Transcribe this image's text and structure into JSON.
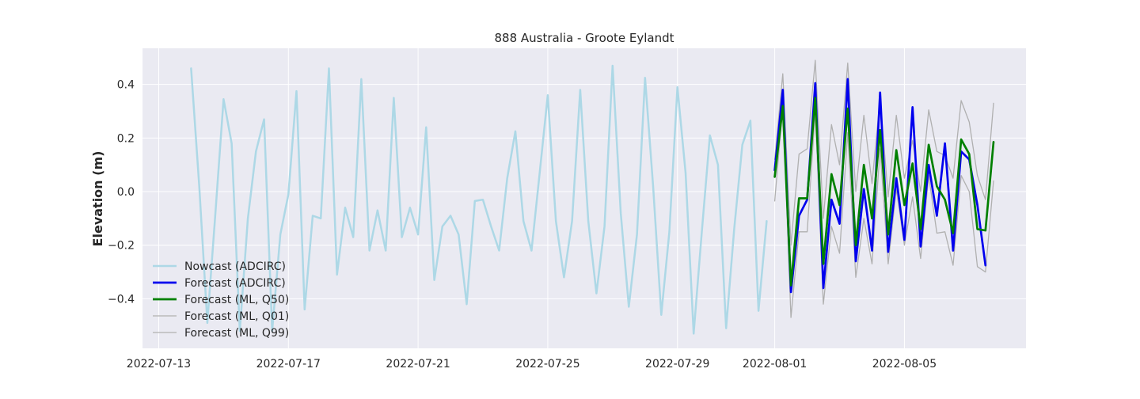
{
  "chart_data": {
    "type": "line",
    "title": "888 Australia - Groote Eylandt",
    "xlabel": "",
    "ylabel": "Elevation (m)",
    "x_axis": {
      "type": "date",
      "range": [
        "2022-07-12T12:00",
        "2022-08-08T18:00"
      ],
      "ticks": [
        "2022-07-13",
        "2022-07-17",
        "2022-07-21",
        "2022-07-25",
        "2022-07-29",
        "2022-08-01",
        "2022-08-05"
      ]
    },
    "y_axis": {
      "range": [
        -0.585,
        0.535
      ],
      "ticks": [
        -0.4,
        -0.2,
        0.0,
        0.2,
        0.4
      ],
      "tick_labels": [
        "−0.4",
        "−0.2",
        "0.0",
        "0.2",
        "0.4"
      ]
    },
    "grid": true,
    "legend": "lower-left",
    "colors": {
      "background": "#eaeaf2",
      "grid": "#ffffff"
    },
    "series": [
      {
        "name": "Nowcast (ADCIRC)",
        "color": "#add8e6",
        "width": 2.5,
        "points": [
          [
            "2022-07-14T00:00",
            0.46
          ],
          [
            "2022-07-14T06:00",
            0.02
          ],
          [
            "2022-07-14T12:00",
            -0.49
          ],
          [
            "2022-07-14T18:00",
            -0.08
          ],
          [
            "2022-07-15T00:00",
            0.345
          ],
          [
            "2022-07-15T06:00",
            0.18
          ],
          [
            "2022-07-15T12:00",
            -0.52
          ],
          [
            "2022-07-15T18:00",
            -0.1
          ],
          [
            "2022-07-16T00:00",
            0.15
          ],
          [
            "2022-07-16T06:00",
            0.27
          ],
          [
            "2022-07-16T12:00",
            -0.52
          ],
          [
            "2022-07-16T18:00",
            -0.16
          ],
          [
            "2022-07-17T00:00",
            -0.01
          ],
          [
            "2022-07-17T06:00",
            0.375
          ],
          [
            "2022-07-17T12:00",
            -0.44
          ],
          [
            "2022-07-17T18:00",
            -0.09
          ],
          [
            "2022-07-18T00:00",
            -0.1
          ],
          [
            "2022-07-18T06:00",
            0.46
          ],
          [
            "2022-07-18T12:00",
            -0.31
          ],
          [
            "2022-07-18T18:00",
            -0.06
          ],
          [
            "2022-07-19T00:00",
            -0.17
          ],
          [
            "2022-07-19T06:00",
            0.42
          ],
          [
            "2022-07-19T12:00",
            -0.22
          ],
          [
            "2022-07-19T18:00",
            -0.07
          ],
          [
            "2022-07-20T00:00",
            -0.22
          ],
          [
            "2022-07-20T06:00",
            0.35
          ],
          [
            "2022-07-20T12:00",
            -0.17
          ],
          [
            "2022-07-20T18:00",
            -0.06
          ],
          [
            "2022-07-21T00:00",
            -0.16
          ],
          [
            "2022-07-21T06:00",
            0.24
          ],
          [
            "2022-07-21T12:00",
            -0.33
          ],
          [
            "2022-07-21T18:00",
            -0.13
          ],
          [
            "2022-07-22T00:00",
            -0.09
          ],
          [
            "2022-07-22T06:00",
            -0.16
          ],
          [
            "2022-07-22T12:00",
            -0.42
          ],
          [
            "2022-07-22T18:00",
            -0.035
          ],
          [
            "2022-07-23T00:00",
            -0.03
          ],
          [
            "2022-07-23T06:00",
            -0.13
          ],
          [
            "2022-07-23T12:00",
            -0.22
          ],
          [
            "2022-07-23T18:00",
            0.05
          ],
          [
            "2022-07-24T00:00",
            0.225
          ],
          [
            "2022-07-24T06:00",
            -0.11
          ],
          [
            "2022-07-24T12:00",
            -0.22
          ],
          [
            "2022-07-24T18:00",
            0.07
          ],
          [
            "2022-07-25T00:00",
            0.36
          ],
          [
            "2022-07-25T06:00",
            -0.11
          ],
          [
            "2022-07-25T12:00",
            -0.32
          ],
          [
            "2022-07-25T18:00",
            -0.11
          ],
          [
            "2022-07-26T00:00",
            0.38
          ],
          [
            "2022-07-26T06:00",
            -0.11
          ],
          [
            "2022-07-26T12:00",
            -0.38
          ],
          [
            "2022-07-26T18:00",
            -0.13
          ],
          [
            "2022-07-27T00:00",
            0.47
          ],
          [
            "2022-07-27T06:00",
            -0.08
          ],
          [
            "2022-07-27T12:00",
            -0.43
          ],
          [
            "2022-07-27T18:00",
            -0.16
          ],
          [
            "2022-07-28T00:00",
            0.425
          ],
          [
            "2022-07-28T06:00",
            0.02
          ],
          [
            "2022-07-28T12:00",
            -0.46
          ],
          [
            "2022-07-28T18:00",
            -0.15
          ],
          [
            "2022-07-29T00:00",
            0.39
          ],
          [
            "2022-07-29T06:00",
            0.07
          ],
          [
            "2022-07-29T12:00",
            -0.53
          ],
          [
            "2022-07-29T18:00",
            -0.15
          ],
          [
            "2022-07-30T00:00",
            0.21
          ],
          [
            "2022-07-30T06:00",
            0.1
          ],
          [
            "2022-07-30T12:00",
            -0.51
          ],
          [
            "2022-07-30T18:00",
            -0.14
          ],
          [
            "2022-07-31T00:00",
            0.175
          ],
          [
            "2022-07-31T06:00",
            0.265
          ],
          [
            "2022-07-31T12:00",
            -0.445
          ],
          [
            "2022-07-31T18:00",
            -0.11
          ]
        ]
      },
      {
        "name": "Forecast (ML, Q01)",
        "color": "#b0b0b0",
        "width": 1.3,
        "points": [
          [
            "2022-08-01T00:00",
            -0.035
          ],
          [
            "2022-08-01T06:00",
            0.32
          ],
          [
            "2022-08-01T12:00",
            -0.47
          ],
          [
            "2022-08-01T18:00",
            -0.15
          ],
          [
            "2022-08-02T00:00",
            -0.15
          ],
          [
            "2022-08-02T06:00",
            0.3
          ],
          [
            "2022-08-02T12:00",
            -0.42
          ],
          [
            "2022-08-02T18:00",
            -0.13
          ],
          [
            "2022-08-03T00:00",
            -0.23
          ],
          [
            "2022-08-03T06:00",
            0.22
          ],
          [
            "2022-08-03T12:00",
            -0.32
          ],
          [
            "2022-08-03T18:00",
            -0.1
          ],
          [
            "2022-08-04T00:00",
            -0.27
          ],
          [
            "2022-08-04T06:00",
            0.16
          ],
          [
            "2022-08-04T12:00",
            -0.27
          ],
          [
            "2022-08-04T18:00",
            0.01
          ],
          [
            "2022-08-05T00:00",
            -0.2
          ],
          [
            "2022-08-05T06:00",
            -0.02
          ],
          [
            "2022-08-05T12:00",
            -0.25
          ],
          [
            "2022-08-05T18:00",
            0.06
          ],
          [
            "2022-08-06T00:00",
            -0.155
          ],
          [
            "2022-08-06T06:00",
            -0.15
          ],
          [
            "2022-08-06T12:00",
            -0.275
          ],
          [
            "2022-08-06T18:00",
            0.06
          ],
          [
            "2022-08-07T00:00",
            0.0
          ],
          [
            "2022-08-07T06:00",
            -0.28
          ],
          [
            "2022-08-07T12:00",
            -0.3
          ],
          [
            "2022-08-07T18:00",
            0.04
          ]
        ]
      },
      {
        "name": "Forecast (ML, Q99)",
        "color": "#b0b0b0",
        "width": 1.3,
        "points": [
          [
            "2022-08-01T00:00",
            0.12
          ],
          [
            "2022-08-01T06:00",
            0.44
          ],
          [
            "2022-08-01T12:00",
            -0.2
          ],
          [
            "2022-08-01T18:00",
            0.14
          ],
          [
            "2022-08-02T00:00",
            0.16
          ],
          [
            "2022-08-02T06:00",
            0.49
          ],
          [
            "2022-08-02T12:00",
            -0.1
          ],
          [
            "2022-08-02T18:00",
            0.25
          ],
          [
            "2022-08-03T00:00",
            0.1
          ],
          [
            "2022-08-03T06:00",
            0.48
          ],
          [
            "2022-08-03T12:00",
            0.0
          ],
          [
            "2022-08-03T18:00",
            0.285
          ],
          [
            "2022-08-04T00:00",
            0.03
          ],
          [
            "2022-08-04T06:00",
            0.35
          ],
          [
            "2022-08-04T12:00",
            -0.02
          ],
          [
            "2022-08-04T18:00",
            0.285
          ],
          [
            "2022-08-05T00:00",
            0.05
          ],
          [
            "2022-08-05T06:00",
            0.19
          ],
          [
            "2022-08-05T12:00",
            0.0
          ],
          [
            "2022-08-05T18:00",
            0.305
          ],
          [
            "2022-08-06T00:00",
            0.15
          ],
          [
            "2022-08-06T06:00",
            0.135
          ],
          [
            "2022-08-06T12:00",
            0.05
          ],
          [
            "2022-08-06T18:00",
            0.34
          ],
          [
            "2022-08-07T00:00",
            0.26
          ],
          [
            "2022-08-07T06:00",
            0.06
          ],
          [
            "2022-08-07T12:00",
            -0.03
          ],
          [
            "2022-08-07T18:00",
            0.33
          ]
        ]
      },
      {
        "name": "Forecast (ADCIRC)",
        "color": "#0000ee",
        "width": 2.7,
        "points": [
          [
            "2022-08-01T00:00",
            0.08
          ],
          [
            "2022-08-01T06:00",
            0.38
          ],
          [
            "2022-08-01T12:00",
            -0.375
          ],
          [
            "2022-08-01T18:00",
            -0.09
          ],
          [
            "2022-08-02T00:00",
            -0.03
          ],
          [
            "2022-08-02T06:00",
            0.405
          ],
          [
            "2022-08-02T12:00",
            -0.36
          ],
          [
            "2022-08-02T18:00",
            -0.03
          ],
          [
            "2022-08-03T00:00",
            -0.12
          ],
          [
            "2022-08-03T06:00",
            0.42
          ],
          [
            "2022-08-03T12:00",
            -0.26
          ],
          [
            "2022-08-03T18:00",
            0.01
          ],
          [
            "2022-08-04T00:00",
            -0.22
          ],
          [
            "2022-08-04T06:00",
            0.37
          ],
          [
            "2022-08-04T12:00",
            -0.225
          ],
          [
            "2022-08-04T18:00",
            0.05
          ],
          [
            "2022-08-05T00:00",
            -0.18
          ],
          [
            "2022-08-05T06:00",
            0.315
          ],
          [
            "2022-08-05T12:00",
            -0.205
          ],
          [
            "2022-08-05T18:00",
            0.1
          ],
          [
            "2022-08-06T00:00",
            -0.09
          ],
          [
            "2022-08-06T06:00",
            0.18
          ],
          [
            "2022-08-06T12:00",
            -0.22
          ],
          [
            "2022-08-06T18:00",
            0.15
          ],
          [
            "2022-08-07T00:00",
            0.12
          ],
          [
            "2022-08-07T06:00",
            -0.05
          ],
          [
            "2022-08-07T12:00",
            -0.275
          ]
        ]
      },
      {
        "name": "Forecast (ML, Q50)",
        "color": "#008000",
        "width": 2.7,
        "points": [
          [
            "2022-08-01T00:00",
            0.055
          ],
          [
            "2022-08-01T06:00",
            0.32
          ],
          [
            "2022-08-01T12:00",
            -0.35
          ],
          [
            "2022-08-01T18:00",
            -0.025
          ],
          [
            "2022-08-02T00:00",
            -0.025
          ],
          [
            "2022-08-02T06:00",
            0.35
          ],
          [
            "2022-08-02T12:00",
            -0.27
          ],
          [
            "2022-08-02T18:00",
            0.065
          ],
          [
            "2022-08-03T00:00",
            -0.05
          ],
          [
            "2022-08-03T06:00",
            0.31
          ],
          [
            "2022-08-03T12:00",
            -0.2
          ],
          [
            "2022-08-03T18:00",
            0.1
          ],
          [
            "2022-08-04T00:00",
            -0.1
          ],
          [
            "2022-08-04T06:00",
            0.23
          ],
          [
            "2022-08-04T12:00",
            -0.16
          ],
          [
            "2022-08-04T18:00",
            0.155
          ],
          [
            "2022-08-05T00:00",
            -0.05
          ],
          [
            "2022-08-05T06:00",
            0.105
          ],
          [
            "2022-08-05T12:00",
            -0.14
          ],
          [
            "2022-08-05T18:00",
            0.175
          ],
          [
            "2022-08-06T00:00",
            0.02
          ],
          [
            "2022-08-06T06:00",
            -0.03
          ],
          [
            "2022-08-06T12:00",
            -0.155
          ],
          [
            "2022-08-06T18:00",
            0.195
          ],
          [
            "2022-08-07T00:00",
            0.14
          ],
          [
            "2022-08-07T06:00",
            -0.14
          ],
          [
            "2022-08-07T12:00",
            -0.145
          ],
          [
            "2022-08-07T18:00",
            0.185
          ]
        ]
      }
    ],
    "legend_entries": [
      {
        "label": "Nowcast (ADCIRC)",
        "color": "#add8e6",
        "width": 2.5
      },
      {
        "label": "Forecast (ADCIRC)",
        "color": "#0000ee",
        "width": 2.7
      },
      {
        "label": "Forecast (ML, Q50)",
        "color": "#008000",
        "width": 2.7
      },
      {
        "label": "Forecast (ML, Q01)",
        "color": "#b0b0b0",
        "width": 1.3
      },
      {
        "label": "Forecast (ML, Q99)",
        "color": "#b0b0b0",
        "width": 1.3
      }
    ]
  }
}
